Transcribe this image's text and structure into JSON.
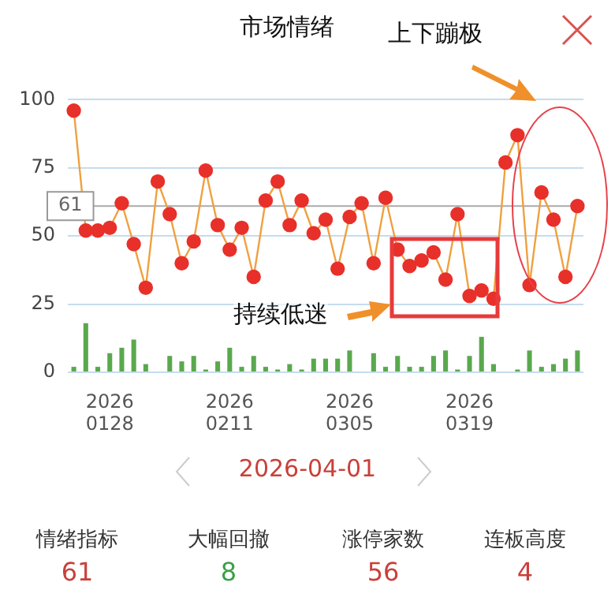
{
  "chart_data": {
    "type": "line",
    "title": "市场情绪",
    "categories": [
      null,
      null,
      null,
      "2026\n0128",
      null,
      null,
      null,
      null,
      null,
      null,
      null,
      null,
      null,
      "2026\n0211",
      null,
      null,
      null,
      null,
      null,
      null,
      null,
      null,
      null,
      "2026\n0305",
      null,
      null,
      null,
      null,
      null,
      null,
      null,
      null,
      null,
      "2026\n0319",
      null,
      null,
      null,
      null,
      null,
      null,
      null,
      null,
      null
    ],
    "series": [
      {
        "type": "bar",
        "color": "#5aa84e",
        "values": [
          2,
          18,
          2,
          7,
          9,
          12,
          3,
          0,
          6,
          4,
          6,
          1,
          4,
          9,
          2,
          6,
          2,
          1,
          3,
          1,
          5,
          5,
          5,
          8,
          0,
          7,
          2,
          6,
          2,
          2,
          6,
          8,
          1,
          6,
          13,
          3,
          0,
          1,
          8,
          2,
          3,
          5,
          8
        ]
      },
      {
        "color": "#f0a040",
        "colors": [
          "#e8302a",
          "#e8302a",
          "#e8302a",
          "#e8302a",
          "#e8302a",
          "#e8302a",
          "#e8302a",
          "#e8302a",
          "#e8302a",
          "#e8302a",
          "#e8302a",
          "#e8302a",
          "#e8302a",
          "#e8302a",
          "#e8302a",
          "#e8302a",
          "#e8302a",
          "#e8302a",
          "#e8302a",
          "#e8302a",
          "#e8302a",
          "#e8302a",
          "#e8302a",
          "#e8302a",
          "#e8302a",
          "#e8302a",
          "#e8302a",
          "#e8302a",
          "#e8302a",
          "#e8302a",
          "#e8302a",
          "#e8302a",
          "#e8302a",
          "#e8302a",
          "#e8302a",
          "#e8302a",
          "#e8302a",
          "#e8302a",
          "#e8302a",
          "#e8302a",
          "#e8302a",
          "#e8302a",
          "#e8302a"
        ],
        "values": [
          96,
          52,
          52,
          53,
          62,
          47,
          31,
          70,
          58,
          40,
          48,
          74,
          54,
          45,
          53,
          35,
          63,
          70,
          54,
          63,
          51,
          56,
          38,
          57,
          62,
          40,
          64,
          45,
          39,
          41,
          44,
          34,
          58,
          28,
          30,
          27,
          77,
          87,
          32,
          66,
          56,
          35,
          61
        ]
      }
    ],
    "ylim": [
      0,
      100
    ],
    "yticks": [
      0,
      25,
      50,
      75,
      100
    ],
    "grid": "y",
    "marker": "circle",
    "ref_lines": [
      {
        "axis": "y",
        "value": 61,
        "label": "61",
        "color": "#aaaaaa"
      }
    ],
    "annotations": [
      "上下蹦极",
      "持续低迷",
      "2026-04-01",
      "情绪指标",
      "61",
      "大幅回撤",
      "8",
      "涨停家数",
      "56",
      "连板高度",
      "4"
    ]
  }
}
